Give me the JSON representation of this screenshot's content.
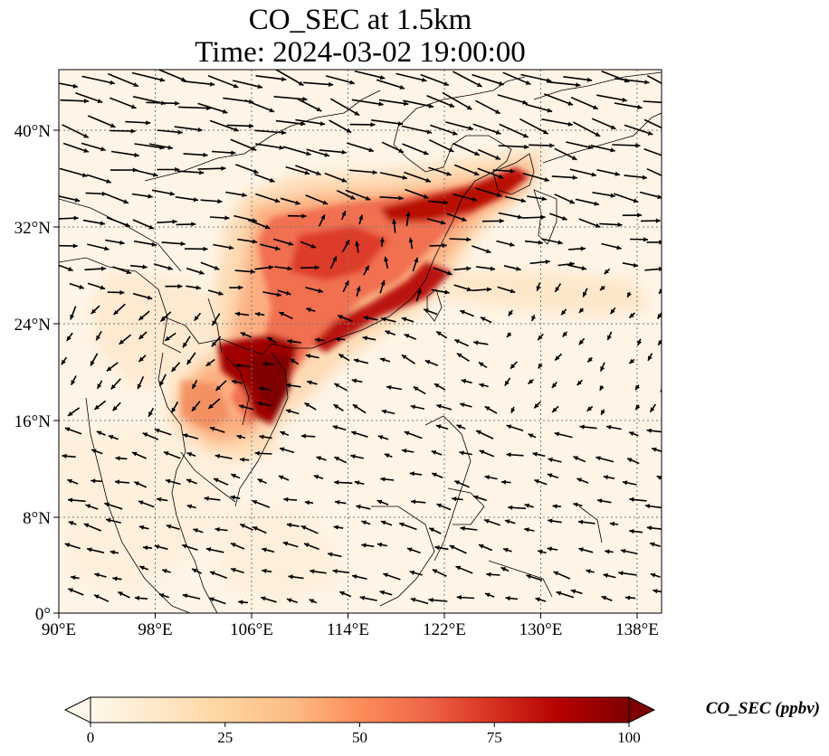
{
  "title": {
    "line1": "CO_SEC at 1.5km",
    "line2": "Time: 2024-03-02 19:00:00"
  },
  "map": {
    "lon_ticks": [
      "90°E",
      "98°E",
      "106°E",
      "114°E",
      "122°E",
      "130°E",
      "138°E"
    ],
    "lat_ticks": [
      "0°",
      "8°N",
      "16°N",
      "24°N",
      "32°N",
      "40°N"
    ],
    "gridlines": "dotted"
  },
  "colorbar": {
    "label": "CO_SEC (ppbv)",
    "ticks": [
      "0",
      "25",
      "50",
      "75",
      "100"
    ],
    "range": [
      0,
      100
    ],
    "colormap": "OrRd",
    "colors": [
      "#fff7ec",
      "#fee8c8",
      "#fdd49e",
      "#fdbb84",
      "#fc8d59",
      "#ef6548",
      "#d7301f",
      "#b30000",
      "#7f0000"
    ]
  }
}
